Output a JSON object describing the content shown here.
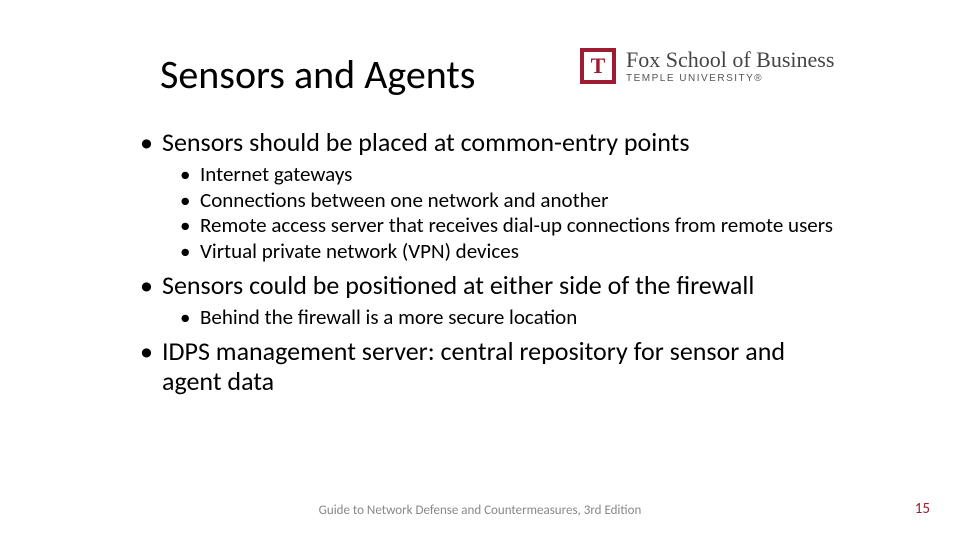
{
  "title": "Sensors and Agents",
  "logo": {
    "glyph": "T",
    "line1": "Fox School of Business",
    "line2": "TEMPLE UNIVERSITY®",
    "brand_color": "#9e1b32"
  },
  "bullets": {
    "b1_1": "Sensors should be placed at common-entry points",
    "b1_1_sub": {
      "s1": "Internet gateways",
      "s2": "Connections between one network and another",
      "s3": "Remote access server that receives dial-up connections from remote users",
      "s4": "Virtual private network (VPN) devices"
    },
    "b1_2": "Sensors could be positioned at either side of the firewall",
    "b1_2_sub": {
      "s1": "Behind the firewall is a more secure location"
    },
    "b1_3": "IDPS management server: central repository for sensor and agent data"
  },
  "footer": {
    "center": "Guide to Network Defense and Countermeasures, 3rd Edition",
    "page": "15"
  },
  "colors": {
    "text": "#000000",
    "footer_text": "#888888",
    "page_number": "#9e1b32",
    "background": "#ffffff"
  }
}
